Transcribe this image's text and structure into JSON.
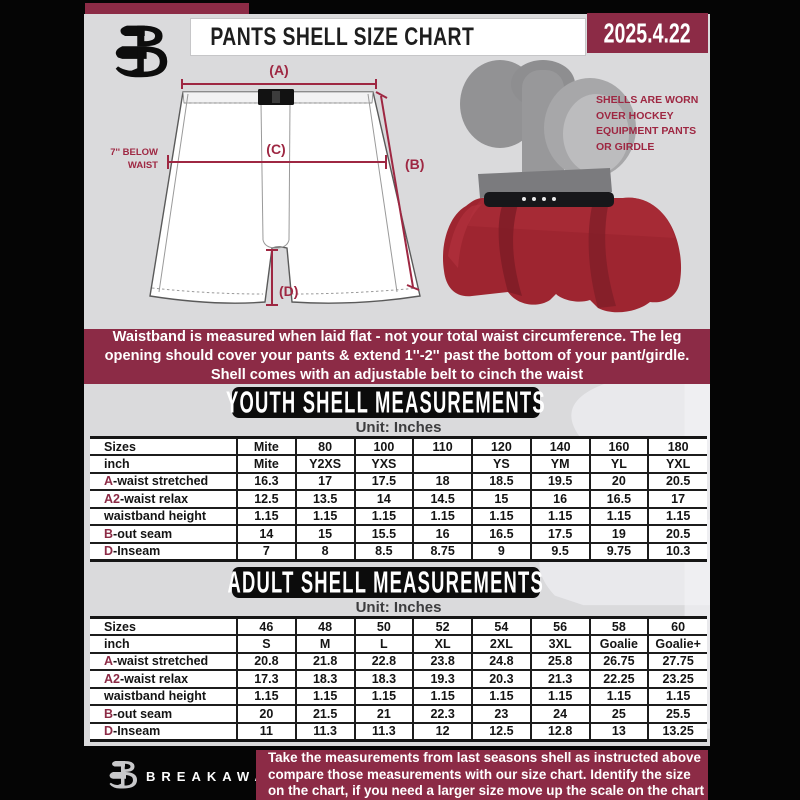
{
  "colors": {
    "maroon": "#8C2B46",
    "accent": "#9E2742",
    "page_gray": "#dadadc",
    "shell_red": "#9e2530",
    "banner_black": "#0c0c0c"
  },
  "header": {
    "title": "PANTS SHELL SIZE CHART",
    "date": "2025.4.22",
    "brand": "BREAKAWAY"
  },
  "diagram": {
    "dim_a": "(A)",
    "dim_b": "(B)",
    "dim_c": "(C)",
    "dim_d": "(D)",
    "below_waist": {
      "lines": [
        "7'' BELOW",
        "WAIST"
      ]
    },
    "shell_note": {
      "lines": [
        "SHELLS ARE WORN",
        "OVER HOCKEY",
        "EQUIPMENT PANTS",
        "OR GIRDLE"
      ]
    }
  },
  "notice": {
    "lines": [
      "Waistband is measured when laid flat - not your total waist circumference. The leg",
      "opening should cover your pants & extend 1''-2'' past the bottom of your pant/girdle.",
      "Shell comes with an adjustable belt to cinch the waist"
    ]
  },
  "youth": {
    "banner": "YOUTH SHELL MEASUREMENTS",
    "unit": "Unit: Inches"
  },
  "adult": {
    "banner": "ADULT SHELL MEASUREMENTS",
    "unit": "Unit: Inches"
  },
  "tables": {
    "youth": {
      "rows": [
        {
          "prefix": "",
          "label": "Sizes",
          "values": [
            "Mite",
            "80",
            "100",
            "110",
            "120",
            "140",
            "160",
            "180"
          ]
        },
        {
          "prefix": "",
          "label": "inch",
          "values": [
            "Mite",
            "Y2XS",
            "YXS",
            "",
            "YS",
            "YM",
            "YL",
            "YXL"
          ]
        },
        {
          "prefix": "A",
          "label": "-waist stretched",
          "values": [
            "16.3",
            "17",
            "17.5",
            "18",
            "18.5",
            "19.5",
            "20",
            "20.5"
          ]
        },
        {
          "prefix": "A2",
          "label": "-waist relax",
          "values": [
            "12.5",
            "13.5",
            "14",
            "14.5",
            "15",
            "16",
            "16.5",
            "17"
          ]
        },
        {
          "prefix": "",
          "label": "waistband height",
          "values": [
            "1.15",
            "1.15",
            "1.15",
            "1.15",
            "1.15",
            "1.15",
            "1.15",
            "1.15"
          ]
        },
        {
          "prefix": "B",
          "label": "-out seam",
          "values": [
            "14",
            "15",
            "15.5",
            "16",
            "16.5",
            "17.5",
            "19",
            "20.5"
          ]
        },
        {
          "prefix": "D",
          "label": "-Inseam",
          "values": [
            "7",
            "8",
            "8.5",
            "8.75",
            "9",
            "9.5",
            "9.75",
            "10.3"
          ]
        }
      ]
    },
    "adult": {
      "rows": [
        {
          "prefix": "",
          "label": "Sizes",
          "values": [
            "46",
            "48",
            "50",
            "52",
            "54",
            "56",
            "58",
            "60"
          ]
        },
        {
          "prefix": "",
          "label": "inch",
          "values": [
            "S",
            "M",
            "L",
            "XL",
            "2XL",
            "3XL",
            "Goalie",
            "Goalie+"
          ]
        },
        {
          "prefix": "A",
          "label": "-waist stretched",
          "values": [
            "20.8",
            "21.8",
            "22.8",
            "23.8",
            "24.8",
            "25.8",
            "26.75",
            "27.75"
          ]
        },
        {
          "prefix": "A2",
          "label": "-waist relax",
          "values": [
            "17.3",
            "18.3",
            "18.3",
            "19.3",
            "20.3",
            "21.3",
            "22.25",
            "23.25"
          ]
        },
        {
          "prefix": "",
          "label": "waistband height",
          "values": [
            "1.15",
            "1.15",
            "1.15",
            "1.15",
            "1.15",
            "1.15",
            "1.15",
            "1.15"
          ]
        },
        {
          "prefix": "B",
          "label": "-out seam",
          "values": [
            "20",
            "21.5",
            "21",
            "22.3",
            "23",
            "24",
            "25",
            "25.5"
          ]
        },
        {
          "prefix": "D",
          "label": "-Inseam",
          "values": [
            "11",
            "11.3",
            "11.3",
            "12",
            "12.5",
            "12.8",
            "13",
            "13.25"
          ]
        }
      ]
    }
  },
  "footer": {
    "brand": "BREAKAWAY",
    "lines": [
      "Take the measurements from last seasons shell as instructed above",
      "compare those measurements  with our size chart. Identify the size",
      "on the chart, if you need a larger size move up the scale on the chart"
    ]
  }
}
